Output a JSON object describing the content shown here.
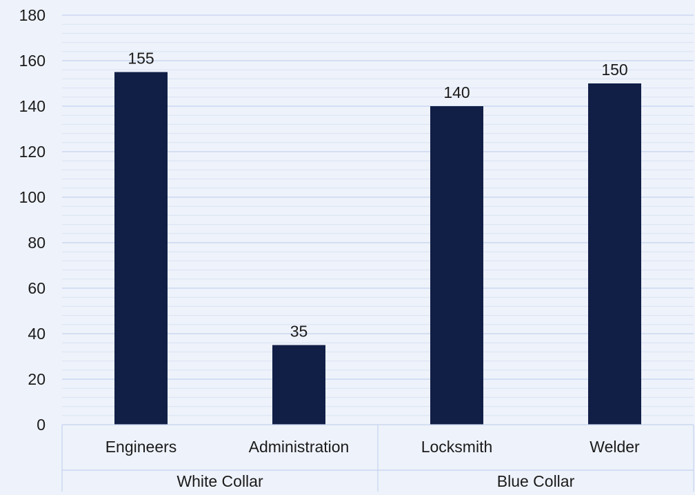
{
  "chart_data": {
    "type": "bar",
    "categories": [
      "Engineers",
      "Administration",
      "Locksmith",
      "Welder"
    ],
    "groups": [
      {
        "label": "White Collar",
        "categories": [
          "Engineers",
          "Administration"
        ]
      },
      {
        "label": "Blue Collar",
        "categories": [
          "Locksmith",
          "Welder"
        ]
      }
    ],
    "values": [
      155,
      35,
      140,
      150
    ],
    "data_labels": [
      "155",
      "35",
      "140",
      "150"
    ],
    "yticks": [
      "0",
      "20",
      "40",
      "60",
      "80",
      "100",
      "120",
      "140",
      "160",
      "180"
    ],
    "ylim": [
      0,
      180
    ],
    "title": "",
    "xlabel": "",
    "ylabel": "",
    "grid": true,
    "minor_grid": true,
    "legend": "none",
    "colors": {
      "bar": "#111f47",
      "background": "#eef2fa",
      "major_grid": "#c4d3ef",
      "minor_grid": "#d9e2f4",
      "axis_lines": "#c4d3ef"
    }
  }
}
